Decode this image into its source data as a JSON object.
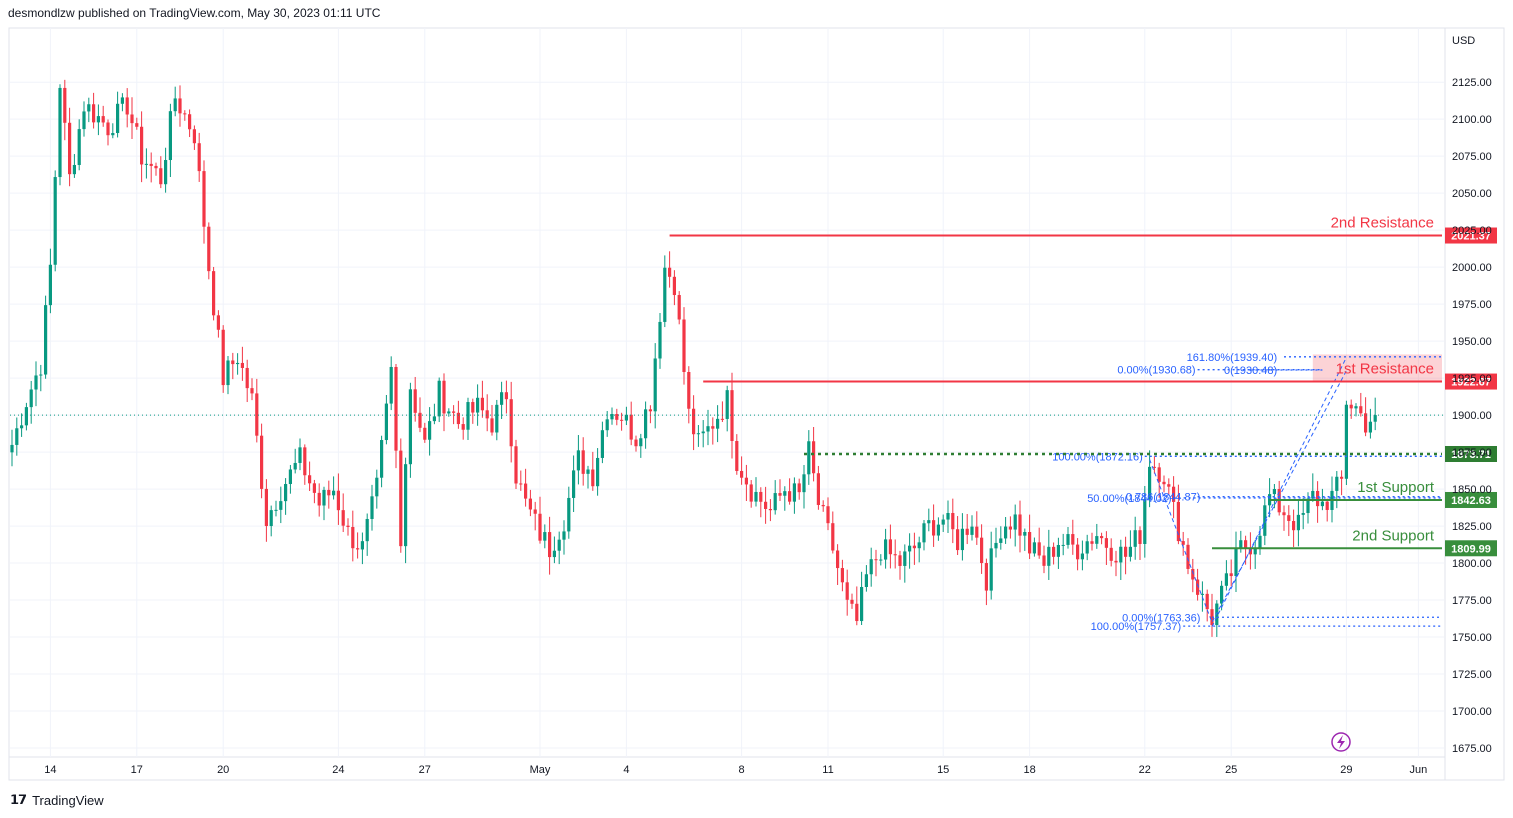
{
  "header": {
    "publisher": "desmondlzw published on TradingView.com, May 30, 2023 01:11 UTC"
  },
  "footer": {
    "brand": "TradingView",
    "logo": "tradingview-logo-icon"
  },
  "chart_data": {
    "type": "candlestick",
    "currency_label": "USD",
    "ylim": [
      1665,
      2140
    ],
    "y_ticks": [
      1675,
      1700,
      1725,
      1750,
      1775,
      1800,
      1825,
      1850,
      1875,
      1900,
      1925,
      1950,
      1975,
      2000,
      2025,
      2050,
      2075,
      2100,
      2125
    ],
    "y_tick_labels": [
      "1675.00",
      "1700.00",
      "1725.00",
      "1750.00",
      "1775.00",
      "1800.00",
      "1825.00",
      "1850.00",
      "1875.00",
      "1900.00",
      "1925.00",
      "1950.00",
      "1975.00",
      "2000.00",
      "2025.00",
      "2050.00",
      "2075.00",
      "2100.00",
      "2125.00"
    ],
    "x_labels": [
      {
        "label": "14",
        "bar": 8
      },
      {
        "label": "17",
        "bar": 26
      },
      {
        "label": "20",
        "bar": 44
      },
      {
        "label": "24",
        "bar": 68
      },
      {
        "label": "27",
        "bar": 86
      },
      {
        "label": "May",
        "bar": 110
      },
      {
        "label": "4",
        "bar": 128
      },
      {
        "label": "8",
        "bar": 152
      },
      {
        "label": "11",
        "bar": 170
      },
      {
        "label": "15",
        "bar": 194
      },
      {
        "label": "18",
        "bar": 212
      },
      {
        "label": "22",
        "bar": 236
      },
      {
        "label": "25",
        "bar": 254
      },
      {
        "label": "29",
        "bar": 278
      },
      {
        "label": "Jun",
        "bar": 293
      }
    ],
    "bars_visible": 300,
    "colors": {
      "up": "#089981",
      "down": "#f23645",
      "resistance": "#f23645",
      "support": "#388e3c",
      "dotted_support": "#2e7d32",
      "fib": "#2962ff",
      "fib_text": "#2962ff",
      "price_line": "#089981"
    },
    "current_price": 1900,
    "levels": [
      {
        "name": "2nd Resistance",
        "value": 2021.37,
        "label": "2021.37",
        "color": "#f23645",
        "start_bar": 137,
        "style": "solid"
      },
      {
        "name": "1st Resistance",
        "value": 1922.67,
        "label": "1922.67",
        "color": "#f23645",
        "start_bar": 144,
        "style": "solid"
      },
      {
        "name": "",
        "value": 1873.71,
        "label": "1873.71",
        "color": "#2e7d32",
        "start_bar": 165,
        "style": "dotted"
      },
      {
        "name": "1st Support",
        "value": 1842.63,
        "label": "1842.63",
        "color": "#388e3c",
        "start_bar": 262,
        "style": "solid"
      },
      {
        "name": "2nd Support",
        "value": 1809.99,
        "label": "1809.99",
        "color": "#388e3c",
        "start_bar": 250,
        "style": "solid"
      }
    ],
    "level_titles": {
      "r2": "2nd Resistance",
      "r1": "1st Resistance",
      "s1": "1st Support",
      "s2": "2nd Support"
    },
    "resistance_zone": {
      "from": 1922.67,
      "to": 1941
    },
    "fib_labels": [
      {
        "text": "161.80%(1939.40)",
        "value": 1939.4
      },
      {
        "text": "0.00%(1930.68)",
        "value": 1930.68
      },
      {
        "text": "0(1930.48)",
        "value": 1930.48
      },
      {
        "text": "100.00%(1872.16)",
        "value": 1872.16
      },
      {
        "text": "0.786(1844.87)",
        "value": 1844.87
      },
      {
        "text": "50.00%(1844.02)",
        "value": 1844.02
      },
      {
        "text": "0.00%(1763.36)",
        "value": 1763.36
      },
      {
        "text": "100.00%(1757.37)",
        "value": 1757.37
      }
    ],
    "anchors": [
      {
        "bar": 0,
        "price": 1880
      },
      {
        "bar": 3,
        "price": 1910
      },
      {
        "bar": 6,
        "price": 1935
      },
      {
        "bar": 8,
        "price": 2000
      },
      {
        "bar": 10,
        "price": 2125
      },
      {
        "bar": 12,
        "price": 2060
      },
      {
        "bar": 15,
        "price": 2110
      },
      {
        "bar": 20,
        "price": 2095
      },
      {
        "bar": 24,
        "price": 2110
      },
      {
        "bar": 27,
        "price": 2075
      },
      {
        "bar": 31,
        "price": 2060
      },
      {
        "bar": 34,
        "price": 2115
      },
      {
        "bar": 38,
        "price": 2090
      },
      {
        "bar": 41,
        "price": 2000
      },
      {
        "bar": 44,
        "price": 1925
      },
      {
        "bar": 47,
        "price": 1940
      },
      {
        "bar": 50,
        "price": 1910
      },
      {
        "bar": 53,
        "price": 1830
      },
      {
        "bar": 56,
        "price": 1850
      },
      {
        "bar": 60,
        "price": 1870
      },
      {
        "bar": 64,
        "price": 1840
      },
      {
        "bar": 67,
        "price": 1850
      },
      {
        "bar": 70,
        "price": 1820
      },
      {
        "bar": 73,
        "price": 1810
      },
      {
        "bar": 76,
        "price": 1850
      },
      {
        "bar": 79,
        "price": 1930
      },
      {
        "bar": 81,
        "price": 1820
      },
      {
        "bar": 83,
        "price": 1920
      },
      {
        "bar": 86,
        "price": 1880
      },
      {
        "bar": 89,
        "price": 1915
      },
      {
        "bar": 93,
        "price": 1895
      },
      {
        "bar": 97,
        "price": 1905
      },
      {
        "bar": 100,
        "price": 1895
      },
      {
        "bar": 103,
        "price": 1915
      },
      {
        "bar": 105,
        "price": 1860
      },
      {
        "bar": 107,
        "price": 1840
      },
      {
        "bar": 110,
        "price": 1820
      },
      {
        "bar": 112,
        "price": 1810
      },
      {
        "bar": 115,
        "price": 1830
      },
      {
        "bar": 118,
        "price": 1870
      },
      {
        "bar": 121,
        "price": 1860
      },
      {
        "bar": 124,
        "price": 1905
      },
      {
        "bar": 127,
        "price": 1900
      },
      {
        "bar": 130,
        "price": 1885
      },
      {
        "bar": 133,
        "price": 1910
      },
      {
        "bar": 136,
        "price": 2000
      },
      {
        "bar": 138,
        "price": 1990
      },
      {
        "bar": 141,
        "price": 1900
      },
      {
        "bar": 143,
        "price": 1880
      },
      {
        "bar": 146,
        "price": 1895
      },
      {
        "bar": 149,
        "price": 1910
      },
      {
        "bar": 151,
        "price": 1870
      },
      {
        "bar": 154,
        "price": 1850
      },
      {
        "bar": 158,
        "price": 1835
      },
      {
        "bar": 161,
        "price": 1850
      },
      {
        "bar": 164,
        "price": 1845
      },
      {
        "bar": 166,
        "price": 1875
      },
      {
        "bar": 168,
        "price": 1840
      },
      {
        "bar": 171,
        "price": 1810
      },
      {
        "bar": 174,
        "price": 1770
      },
      {
        "bar": 176,
        "price": 1760
      },
      {
        "bar": 178,
        "price": 1790
      },
      {
        "bar": 181,
        "price": 1810
      },
      {
        "bar": 185,
        "price": 1800
      },
      {
        "bar": 188,
        "price": 1810
      },
      {
        "bar": 191,
        "price": 1825
      },
      {
        "bar": 194,
        "price": 1830
      },
      {
        "bar": 197,
        "price": 1815
      },
      {
        "bar": 200,
        "price": 1830
      },
      {
        "bar": 203,
        "price": 1790
      },
      {
        "bar": 206,
        "price": 1825
      },
      {
        "bar": 209,
        "price": 1830
      },
      {
        "bar": 212,
        "price": 1810
      },
      {
        "bar": 215,
        "price": 1800
      },
      {
        "bar": 218,
        "price": 1815
      },
      {
        "bar": 222,
        "price": 1810
      },
      {
        "bar": 226,
        "price": 1820
      },
      {
        "bar": 229,
        "price": 1810
      },
      {
        "bar": 232,
        "price": 1805
      },
      {
        "bar": 235,
        "price": 1820
      },
      {
        "bar": 237,
        "price": 1870
      },
      {
        "bar": 240,
        "price": 1860
      },
      {
        "bar": 242,
        "price": 1835
      },
      {
        "bar": 245,
        "price": 1800
      },
      {
        "bar": 248,
        "price": 1775
      },
      {
        "bar": 250,
        "price": 1763
      },
      {
        "bar": 253,
        "price": 1785
      },
      {
        "bar": 256,
        "price": 1810
      },
      {
        "bar": 259,
        "price": 1815
      },
      {
        "bar": 262,
        "price": 1845
      },
      {
        "bar": 265,
        "price": 1835
      },
      {
        "bar": 268,
        "price": 1825
      },
      {
        "bar": 271,
        "price": 1845
      },
      {
        "bar": 273,
        "price": 1840
      },
      {
        "bar": 275,
        "price": 1845
      },
      {
        "bar": 277,
        "price": 1855
      },
      {
        "bar": 278,
        "price": 1910
      },
      {
        "bar": 280,
        "price": 1905
      },
      {
        "bar": 282,
        "price": 1895
      },
      {
        "bar": 284,
        "price": 1900
      }
    ]
  }
}
